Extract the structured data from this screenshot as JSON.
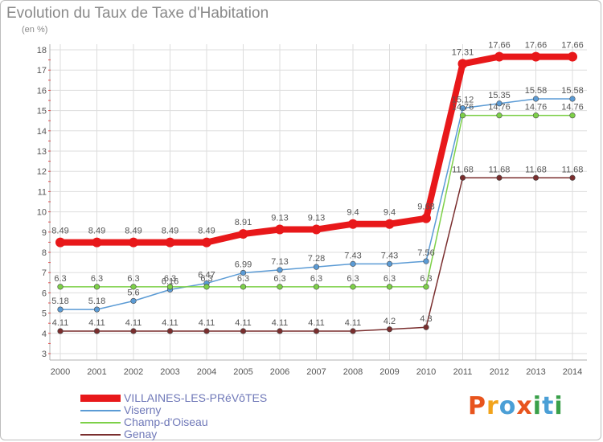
{
  "title": "Evolution du Taux de Taxe d'Habitation",
  "subtitle": "(en %)",
  "logo": {
    "text": "Proxiti",
    "colors": [
      "#e8541d",
      "#f2a31b",
      "#4b9fd6",
      "#e8541d",
      "#3aa04a",
      "#4b9fd6",
      "#3aa04a"
    ]
  },
  "chart_data": {
    "type": "line",
    "x": [
      "2000",
      "2001",
      "2002",
      "2003",
      "2004",
      "2005",
      "2006",
      "2007",
      "2008",
      "2009",
      "2010",
      "2011",
      "2012",
      "2013",
      "2014"
    ],
    "ylim": [
      3,
      18
    ],
    "yticks": [
      3,
      4,
      5,
      6,
      7,
      8,
      9,
      10,
      11,
      12,
      13,
      14,
      15,
      16,
      17,
      18
    ],
    "grid": true,
    "legend_position": "bottom-left",
    "series": [
      {
        "name": "VILLAINES-LES-PRéVôTES",
        "color": "#e8181a",
        "thickness": "thick",
        "values": [
          8.49,
          8.49,
          8.49,
          8.49,
          8.49,
          8.91,
          9.13,
          9.13,
          9.4,
          9.4,
          9.68,
          17.31,
          17.66,
          17.66,
          17.66
        ],
        "labels": [
          "8.49",
          "8.49",
          "8.49",
          "8.49",
          "8.49",
          "8.91",
          "9.13",
          "9.13",
          "9.4",
          "9.4",
          "9.68",
          "17.31",
          "17.66",
          "17.66",
          "17.66"
        ]
      },
      {
        "name": "Viserny",
        "color": "#5b9bd5",
        "thickness": "thin",
        "values": [
          5.18,
          5.18,
          5.6,
          6.16,
          6.47,
          6.99,
          7.13,
          7.28,
          7.43,
          7.43,
          7.56,
          15.12,
          15.35,
          15.58,
          15.58
        ],
        "labels": [
          "5.18",
          "5.18",
          "5.6",
          "6.16",
          "6.47",
          "6.99",
          "7.13",
          "7.28",
          "7.43",
          "7.43",
          "7.56",
          "15.12",
          "15.35",
          "15.58",
          "15.58"
        ]
      },
      {
        "name": "Champ-d'Oiseau",
        "color": "#7dd048",
        "thickness": "thin",
        "values": [
          6.3,
          6.3,
          6.3,
          6.3,
          6.3,
          6.3,
          6.3,
          6.3,
          6.3,
          6.3,
          6.3,
          14.76,
          14.76,
          14.76,
          14.76
        ],
        "labels": [
          "6.3",
          "6.3",
          "6.3",
          "6.3",
          "6.3",
          "6.3",
          "6.3",
          "6.3",
          "6.3",
          "6.3",
          "6.3",
          "14.76",
          "14.76",
          "14.76",
          "14.76"
        ]
      },
      {
        "name": "Genay",
        "color": "#7a2e2e",
        "thickness": "thin",
        "values": [
          4.11,
          4.11,
          4.11,
          4.11,
          4.11,
          4.11,
          4.11,
          4.11,
          4.11,
          4.2,
          4.3,
          11.68,
          11.68,
          11.68,
          11.68
        ],
        "labels": [
          "4.11",
          "4.11",
          "4.11",
          "4.11",
          "4.11",
          "4.11",
          "4.11",
          "4.11",
          "4.11",
          "4.2",
          "4.3",
          "11.68",
          "11.68",
          "11.68",
          "11.68"
        ]
      }
    ]
  }
}
